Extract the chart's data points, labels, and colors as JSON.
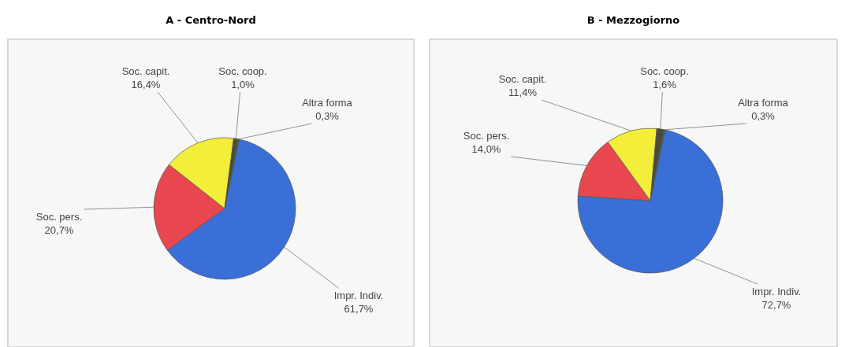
{
  "chart_data": [
    {
      "type": "pie",
      "title": "A - Centro-Nord",
      "categories": [
        "Impr. Indiv.",
        "Soc. pers.",
        "Soc. capit.",
        "Soc. coop.",
        "Altra forma"
      ],
      "values": [
        61.7,
        20.7,
        16.4,
        1.0,
        0.3
      ],
      "value_labels": [
        "61,7%",
        "20,7%",
        "16,4%",
        "1,0%",
        "0,3%"
      ],
      "colors": [
        "#3a6fd8",
        "#e8474f",
        "#f3ee3a",
        "#4a4a3e",
        "#2f6a3c"
      ]
    },
    {
      "type": "pie",
      "title": "B - Mezzogiorno",
      "categories": [
        "Impr. Indiv.",
        "Soc. pers.",
        "Soc. capit.",
        "Soc. coop.",
        "Altra forma"
      ],
      "values": [
        72.7,
        14.0,
        11.4,
        1.6,
        0.3
      ],
      "value_labels": [
        "72,7%",
        "14,0%",
        "11,4%",
        "1,6%",
        "0,3%"
      ],
      "colors": [
        "#3a6fd8",
        "#e8474f",
        "#f3ee3a",
        "#4a4a3e",
        "#2f6a3c"
      ]
    }
  ]
}
